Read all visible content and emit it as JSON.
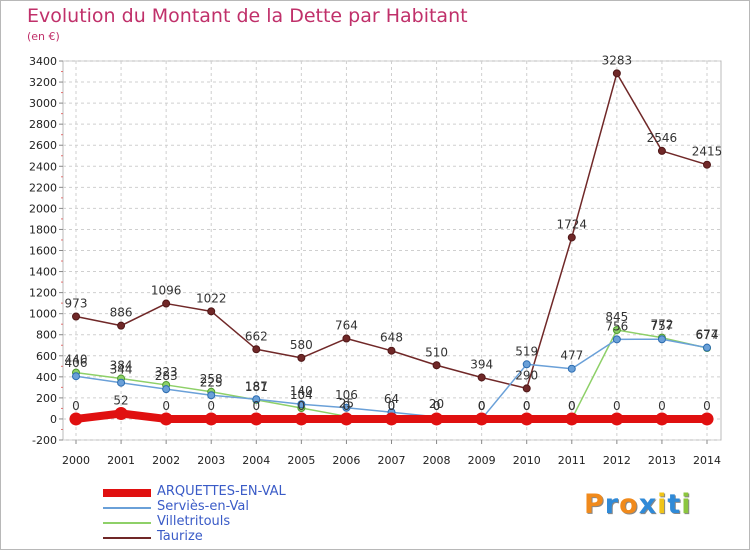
{
  "title": "Evolution du Montant de la Dette par Habitant",
  "unit": "(en €)",
  "logo": {
    "letters": [
      "P",
      "r",
      "o",
      "x",
      "i",
      "t",
      "i"
    ],
    "colors": [
      "#f08a1c",
      "#2f8ad8",
      "#f08a1c",
      "#2f8ad8",
      "#f0c419",
      "#2f8ad8",
      "#8cc63f"
    ]
  },
  "chart_data": {
    "type": "line",
    "title": "Evolution du Montant de la Dette par Habitant",
    "ylabel": "(en €)",
    "x": [
      "2000",
      "2001",
      "2002",
      "2003",
      "2004",
      "2005",
      "2006",
      "2007",
      "2008",
      "2009",
      "2010",
      "2011",
      "2012",
      "2013",
      "2014"
    ],
    "ylim": [
      -200,
      3400
    ],
    "yticks": [
      -200,
      0,
      200,
      400,
      600,
      800,
      1000,
      1200,
      1400,
      1600,
      1800,
      2000,
      2200,
      2400,
      2600,
      2800,
      3000,
      3200,
      3400
    ],
    "grid": true,
    "legend_position": "bottom-left",
    "series": [
      {
        "name": "ARQUETTES-EN-VAL",
        "color": "#e01010",
        "values": [
          0,
          52,
          0,
          0,
          0,
          0,
          0,
          0,
          0,
          0,
          0,
          0,
          0,
          0,
          0
        ],
        "labels": [
          "0",
          "52",
          "0",
          "0",
          "0",
          "0",
          "0",
          "0",
          "0",
          "0",
          "0",
          "0",
          "0",
          "0",
          "0"
        ]
      },
      {
        "name": "Serviès-en-Val",
        "color": "#6aa0d8",
        "values": [
          406,
          344,
          283,
          225,
          187,
          140,
          106,
          64,
          20,
          0,
          519,
          477,
          756,
          757,
          677
        ],
        "labels": [
          "406",
          "344",
          "283",
          "225",
          "187",
          "140",
          "106",
          "64",
          "20",
          "0",
          "519",
          "477",
          "756",
          "757",
          "677"
        ]
      },
      {
        "name": "Villetritouls",
        "color": "#8ed068",
        "values": [
          440,
          384,
          323,
          258,
          181,
          104,
          25,
          0,
          0,
          0,
          0,
          0,
          845,
          772,
          674
        ],
        "labels": [
          "440",
          "384",
          "323",
          "258",
          "181",
          "104",
          "25",
          "0",
          "0",
          "0",
          "0",
          "0",
          "845",
          "772",
          "674"
        ]
      },
      {
        "name": "Taurize",
        "color": "#702828",
        "values": [
          973,
          886,
          1096,
          1022,
          662,
          580,
          764,
          648,
          510,
          394,
          290,
          1724,
          3283,
          2546,
          2415
        ],
        "labels": [
          "973",
          "886",
          "1096",
          "1022",
          "662",
          "580",
          "764",
          "648",
          "510",
          "394",
          "290",
          "1724",
          "3283",
          "2546",
          "2415"
        ]
      }
    ]
  }
}
